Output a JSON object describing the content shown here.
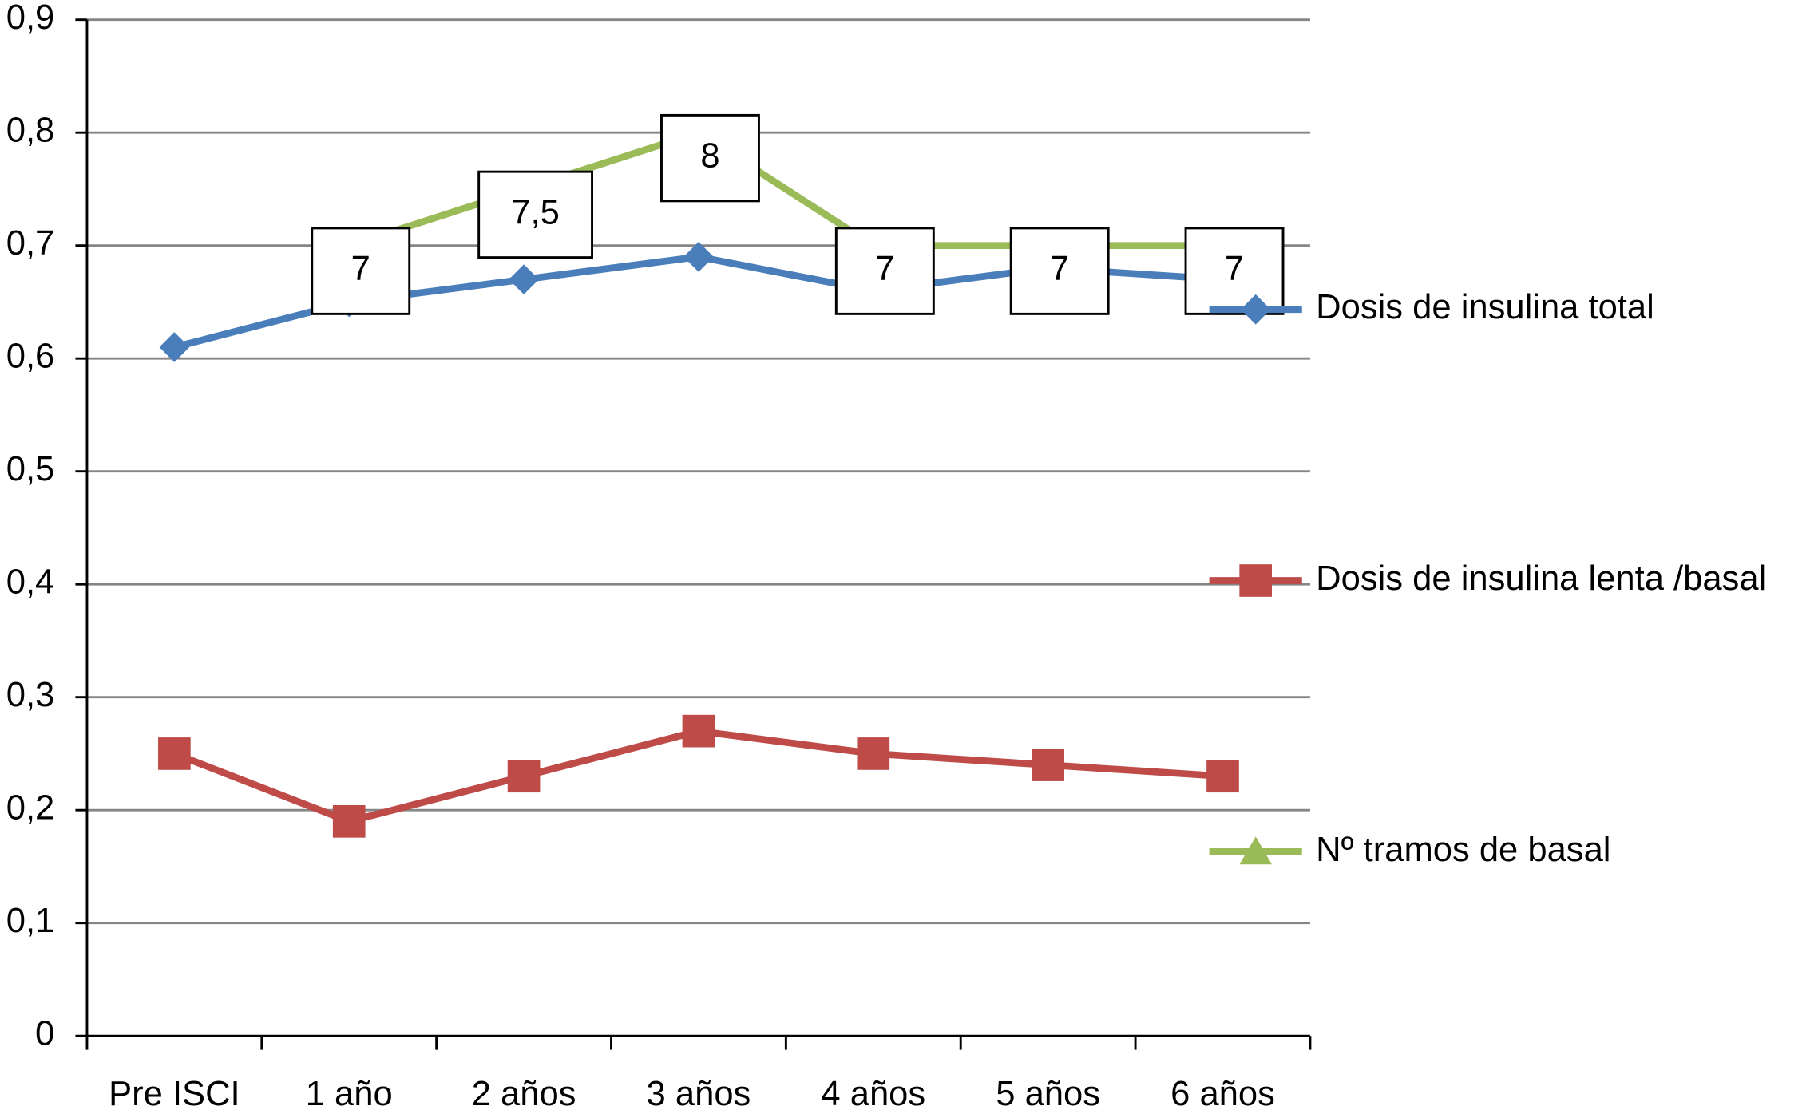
{
  "chart_data": {
    "type": "line",
    "categories": [
      "Pre ISCI",
      "1 año",
      "2 años",
      "3 años",
      "4 años",
      "5 años",
      "6 años"
    ],
    "series": [
      {
        "name": "Dosis de insulina total",
        "color": "#4a7ebb",
        "marker": "diamond",
        "values": [
          0.61,
          0.65,
          0.67,
          0.69,
          0.66,
          0.68,
          0.67
        ]
      },
      {
        "name": "Dosis de insulina lenta /basal",
        "color": "#be4b48",
        "marker": "square",
        "values": [
          0.25,
          0.19,
          0.23,
          0.27,
          0.25,
          0.24,
          0.23
        ]
      },
      {
        "name": "Nº tramos de basal",
        "color": "#9bbb59",
        "marker": "triangle",
        "values": [
          null,
          0.7,
          0.75,
          0.8,
          0.7,
          0.7,
          0.7
        ],
        "value_labels": [
          null,
          "7",
          "7,5",
          "8",
          "7",
          "7",
          "7"
        ]
      }
    ],
    "ylim": [
      0,
      0.9
    ],
    "yticks": [
      0,
      {
        "value": 0.1,
        "label": "0,1"
      },
      {
        "value": 0.2,
        "label": "0,2"
      },
      {
        "value": 0.3,
        "label": "0,3"
      },
      {
        "value": 0.4,
        "label": "0,4"
      },
      {
        "value": 0.5,
        "label": "0,5"
      },
      {
        "value": 0.6,
        "label": "0,6"
      },
      {
        "value": 0.7,
        "label": "0,7"
      },
      {
        "value": 0.8,
        "label": "0,8"
      },
      {
        "value": 0.9,
        "label": "0,9"
      }
    ],
    "grid": true,
    "legend": "right"
  }
}
